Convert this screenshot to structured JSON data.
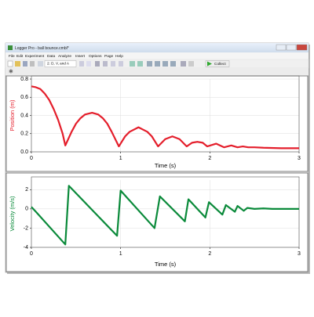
{
  "window": {
    "title": "Logger Pro - ball bounce.cmbl*",
    "menu": [
      "File",
      "Edit",
      "Experiment",
      "Data",
      "Analyze",
      "Insert",
      "Options",
      "Page",
      "Help"
    ],
    "page_selector": "2: D, V, and A",
    "collect_button": "Collect"
  },
  "chart_data": [
    {
      "type": "line",
      "xlabel": "Time (s)",
      "ylabel": "Position (m)",
      "color": "#e41e2b",
      "x": [
        0,
        0.05,
        0.1,
        0.15,
        0.2,
        0.25,
        0.3,
        0.35,
        0.38,
        0.45,
        0.5,
        0.55,
        0.6,
        0.68,
        0.75,
        0.8,
        0.85,
        0.9,
        0.98,
        1.05,
        1.1,
        1.2,
        1.3,
        1.35,
        1.42,
        1.5,
        1.58,
        1.66,
        1.74,
        1.8,
        1.86,
        1.92,
        1.97,
        2.07,
        2.16,
        2.24,
        2.31,
        2.37,
        2.43,
        2.5,
        2.6,
        2.8,
        3
      ],
      "values": [
        0.72,
        0.71,
        0.69,
        0.64,
        0.57,
        0.47,
        0.35,
        0.2,
        0.07,
        0.22,
        0.31,
        0.37,
        0.41,
        0.43,
        0.41,
        0.37,
        0.31,
        0.22,
        0.06,
        0.17,
        0.22,
        0.27,
        0.22,
        0.17,
        0.06,
        0.14,
        0.17,
        0.14,
        0.06,
        0.1,
        0.11,
        0.1,
        0.06,
        0.09,
        0.05,
        0.07,
        0.05,
        0.06,
        0.05,
        0.05,
        0.045,
        0.04,
        0.04
      ],
      "xlim": [
        0,
        3
      ],
      "xticks": [
        0,
        1,
        2,
        3
      ],
      "ylim": [
        0,
        0.8
      ],
      "yticks": [
        {
          "value": 0,
          "label": "0.0"
        },
        0.2,
        0.4,
        0.6,
        0.8
      ],
      "grid": true
    },
    {
      "type": "line",
      "xlabel": "Time (s)",
      "ylabel": "Velocity (m/s)",
      "color": "#0a8a3a",
      "x": [
        0,
        0.05,
        0.38,
        0.42,
        0.96,
        1.0,
        1.38,
        1.44,
        1.72,
        1.76,
        1.95,
        1.99,
        2.14,
        2.18,
        2.28,
        2.31,
        2.38,
        2.42,
        2.5,
        2.6,
        2.7,
        3
      ],
      "values": [
        0.2,
        -0.3,
        -3.7,
        2.4,
        -2.8,
        1.9,
        -2.0,
        1.3,
        -1.3,
        1.0,
        -0.9,
        0.7,
        -0.6,
        0.4,
        -0.3,
        0.3,
        -0.2,
        0.1,
        0,
        0.05,
        0,
        0
      ],
      "xlim": [
        0,
        3
      ],
      "xticks": [
        0,
        1,
        2,
        3
      ],
      "ylim": [
        -4,
        3
      ],
      "yticks": [
        2,
        0,
        -2,
        -4
      ],
      "grid": true
    }
  ]
}
